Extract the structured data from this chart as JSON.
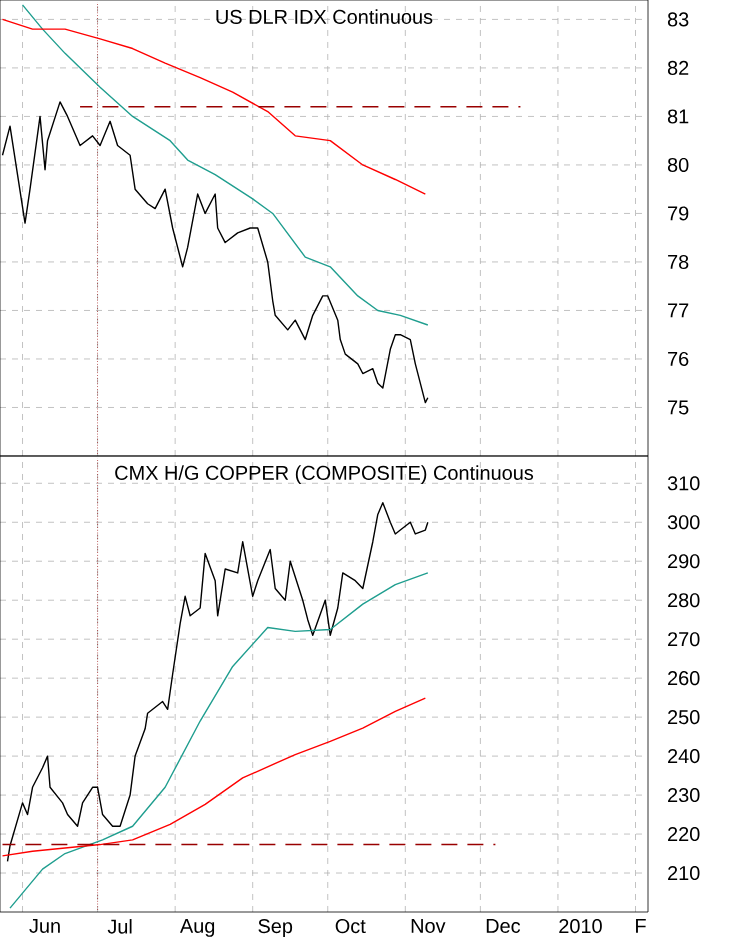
{
  "chart_data": [
    {
      "type": "line",
      "title": "US DLR IDX Continuous",
      "xlim": [
        "2009-05-23",
        "2010-02-06"
      ],
      "ylim": [
        74,
        83.4
      ],
      "grid": true,
      "tick_labels": "y",
      "xticks": [
        {
          "value": "2009-06-01",
          "label": null
        },
        {
          "value": "2009-07-01",
          "label": null
        },
        {
          "value": "2009-08-01",
          "label": null
        },
        {
          "value": "2009-09-01",
          "label": null
        },
        {
          "value": "2009-10-01",
          "label": null
        },
        {
          "value": "2009-11-01",
          "label": null
        },
        {
          "value": "2009-12-01",
          "label": null
        },
        {
          "value": "2010-01-01",
          "label": null
        },
        {
          "value": "2010-02-01",
          "label": null
        }
      ],
      "yticks": [
        75,
        76,
        77,
        78,
        79,
        80,
        81,
        82,
        83
      ],
      "series": [
        {
          "color": "#000000",
          "x": [
            "2009-05-24",
            "2009-05-27",
            "2009-06-02",
            "2009-06-04",
            "2009-06-08",
            "2009-06-10",
            "2009-06-11",
            "2009-06-16",
            "2009-06-19",
            "2009-06-24",
            "2009-06-29",
            "2009-07-02",
            "2009-07-06",
            "2009-07-09",
            "2009-07-14",
            "2009-07-16",
            "2009-07-21",
            "2009-07-24",
            "2009-07-28",
            "2009-07-31",
            "2009-08-04",
            "2009-08-06",
            "2009-08-10",
            "2009-08-13",
            "2009-08-17",
            "2009-08-18",
            "2009-08-21",
            "2009-08-26",
            "2009-08-31",
            "2009-09-03",
            "2009-09-07",
            "2009-09-09",
            "2009-09-10",
            "2009-09-15",
            "2009-09-18",
            "2009-09-22",
            "2009-09-25",
            "2009-09-29",
            "2009-10-01",
            "2009-10-05",
            "2009-10-06",
            "2009-10-08",
            "2009-10-13",
            "2009-10-15",
            "2009-10-19",
            "2009-10-21",
            "2009-10-23",
            "2009-10-26",
            "2009-10-28",
            "2009-10-30",
            "2009-11-03",
            "2009-11-05",
            "2009-11-09",
            "2009-11-10"
          ],
          "values": [
            80.2,
            80.8,
            78.8,
            79.5,
            81.0,
            79.9,
            80.5,
            81.3,
            81.0,
            80.4,
            80.6,
            80.4,
            80.9,
            80.4,
            80.2,
            79.5,
            79.2,
            79.1,
            79.5,
            78.7,
            77.9,
            78.3,
            79.4,
            79.0,
            79.4,
            78.7,
            78.4,
            78.6,
            78.7,
            78.7,
            78.0,
            77.2,
            76.9,
            76.6,
            76.8,
            76.4,
            76.9,
            77.3,
            77.3,
            76.8,
            76.4,
            76.1,
            75.9,
            75.7,
            75.8,
            75.5,
            75.4,
            76.2,
            76.5,
            76.5,
            76.4,
            75.9,
            75.1,
            75.2
          ]
        },
        {
          "color": "#1f9e8f",
          "x": [
            "2009-06-01",
            "2009-06-09",
            "2009-06-18",
            "2009-07-02",
            "2009-07-15",
            "2009-07-30",
            "2009-08-06",
            "2009-08-17",
            "2009-09-01",
            "2009-09-09",
            "2009-09-22",
            "2009-10-02",
            "2009-10-13",
            "2009-10-21",
            "2009-10-30",
            "2009-11-10"
          ],
          "values": [
            83.3,
            82.8,
            82.3,
            81.6,
            81.0,
            80.5,
            80.1,
            79.8,
            79.3,
            79.0,
            78.1,
            77.9,
            77.3,
            77.0,
            76.9,
            76.7
          ]
        },
        {
          "color": "#ff0000",
          "x": [
            "2009-05-24",
            "2009-06-05",
            "2009-06-18",
            "2009-07-02",
            "2009-07-15",
            "2009-07-28",
            "2009-08-11",
            "2009-08-24",
            "2009-09-07",
            "2009-09-18",
            "2009-10-02",
            "2009-10-15",
            "2009-10-28",
            "2009-11-09"
          ],
          "values": [
            83.0,
            82.8,
            82.8,
            82.6,
            82.4,
            82.1,
            81.8,
            81.5,
            81.1,
            80.6,
            80.5,
            80.0,
            79.7,
            79.4
          ]
        },
        {
          "color": "#990000",
          "line_style": "dashed",
          "x": [
            "2009-06-24",
            "2009-12-17"
          ],
          "values": [
            81.2,
            81.2
          ]
        }
      ],
      "ref_lines": [
        {
          "axis": "x",
          "value": "2009-07-01",
          "color": "#990000",
          "line_style": "dotted"
        }
      ]
    },
    {
      "type": "line",
      "title": "CMX H/G COPPER (COMPOSITE) Continuous",
      "xlim": [
        "2009-05-23",
        "2010-02-06"
      ],
      "ylim": [
        200,
        317
      ],
      "grid": true,
      "xticks": [
        {
          "value": "2009-06-01",
          "label": null
        },
        {
          "value": "2009-07-01",
          "label": null
        },
        {
          "value": "2009-08-01",
          "label": null
        },
        {
          "value": "2009-09-01",
          "label": null
        },
        {
          "value": "2009-10-01",
          "label": null
        },
        {
          "value": "2009-11-01",
          "label": null
        },
        {
          "value": "2009-12-01",
          "label": null
        },
        {
          "value": "2010-01-01",
          "label": null
        },
        {
          "value": "2010-02-01",
          "label": null
        },
        {
          "value": "2009-06-10",
          "label": "Jun"
        },
        {
          "value": "2009-07-10",
          "label": "Jul"
        },
        {
          "value": "2009-08-10",
          "label": "Aug"
        },
        {
          "value": "2009-09-10",
          "label": "Sep"
        },
        {
          "value": "2009-10-10",
          "label": "Oct"
        },
        {
          "value": "2009-11-10",
          "label": "Nov"
        },
        {
          "value": "2009-12-10",
          "label": "Dec"
        },
        {
          "value": "2010-01-10",
          "label": "2010"
        },
        {
          "value": "2010-02-03",
          "label": "F"
        }
      ],
      "yticks": [
        210,
        220,
        230,
        240,
        250,
        260,
        270,
        280,
        290,
        300,
        310
      ],
      "series": [
        {
          "color": "#000000",
          "x": [
            "2009-05-26",
            "2009-05-27",
            "2009-06-01",
            "2009-06-03",
            "2009-06-05",
            "2009-06-09",
            "2009-06-11",
            "2009-06-12",
            "2009-06-17",
            "2009-06-19",
            "2009-06-23",
            "2009-06-25",
            "2009-06-29",
            "2009-07-01",
            "2009-07-03",
            "2009-07-07",
            "2009-07-10",
            "2009-07-14",
            "2009-07-16",
            "2009-07-20",
            "2009-07-21",
            "2009-07-27",
            "2009-07-29",
            "2009-07-31",
            "2009-08-03",
            "2009-08-05",
            "2009-08-07",
            "2009-08-11",
            "2009-08-13",
            "2009-08-17",
            "2009-08-18",
            "2009-08-21",
            "2009-08-26",
            "2009-08-28",
            "2009-09-01",
            "2009-09-03",
            "2009-09-08",
            "2009-09-10",
            "2009-09-14",
            "2009-09-16",
            "2009-09-21",
            "2009-09-23",
            "2009-09-25",
            "2009-09-30",
            "2009-10-02",
            "2009-10-05",
            "2009-10-07",
            "2009-10-12",
            "2009-10-15",
            "2009-10-19",
            "2009-10-21",
            "2009-10-23",
            "2009-10-26",
            "2009-10-28",
            "2009-10-30",
            "2009-11-03",
            "2009-11-05",
            "2009-11-09",
            "2009-11-10"
          ],
          "values": [
            213,
            217,
            228,
            225,
            232,
            237,
            240,
            232,
            228,
            225,
            222,
            228,
            232,
            232,
            225,
            222,
            222,
            230,
            240,
            247,
            251,
            254,
            252,
            261,
            274,
            281,
            276,
            278,
            292,
            285,
            276,
            288,
            287,
            295,
            281,
            285,
            293,
            283,
            280,
            290,
            280,
            275,
            271,
            280,
            271,
            278,
            287,
            285,
            283,
            295,
            302,
            305,
            300,
            297,
            298,
            300,
            297,
            298,
            300
          ]
        },
        {
          "color": "#1f9e8f",
          "x": [
            "2009-05-27",
            "2009-06-09",
            "2009-06-18",
            "2009-07-03",
            "2009-07-15",
            "2009-07-28",
            "2009-08-11",
            "2009-08-24",
            "2009-09-07",
            "2009-09-18",
            "2009-10-02",
            "2009-10-15",
            "2009-10-28",
            "2009-11-10"
          ],
          "values": [
            201,
            211,
            215,
            218.5,
            222,
            232,
            249,
            263,
            273,
            272,
            272.5,
            279,
            284,
            287
          ]
        },
        {
          "color": "#ff0000",
          "x": [
            "2009-05-24",
            "2009-06-05",
            "2009-07-02",
            "2009-07-15",
            "2009-07-30",
            "2009-08-13",
            "2009-08-28",
            "2009-09-18",
            "2009-10-02",
            "2009-10-15",
            "2009-10-28",
            "2009-11-09"
          ],
          "values": [
            214.4,
            215.6,
            217.3,
            218.5,
            222.5,
            227.6,
            234.4,
            240.4,
            243.8,
            247.2,
            251.5,
            254.9
          ]
        },
        {
          "color": "#990000",
          "line_style": "dashed",
          "x": [
            "2009-05-24",
            "2009-12-07"
          ],
          "values": [
            217.3,
            217.3
          ]
        }
      ],
      "ref_lines": [
        {
          "axis": "x",
          "value": "2009-07-01",
          "color": "#990000",
          "line_style": "dotted"
        }
      ]
    }
  ]
}
